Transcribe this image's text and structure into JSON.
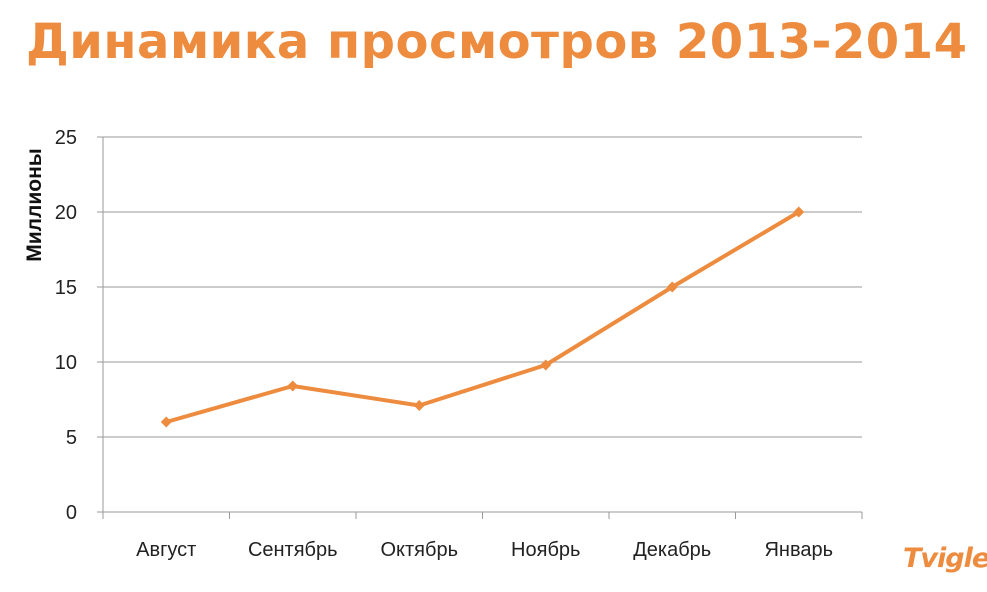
{
  "colors": {
    "accent": "#ED8B3F",
    "grid": "#9a9a9a"
  },
  "title": "Динамика просмотров 2013-2014",
  "logo_text": "Tvigle",
  "chart_data": {
    "type": "line",
    "title": "",
    "xlabel": "",
    "ylabel": "Миллионы",
    "categories": [
      "Август",
      "Сентябрь",
      "Октябрь",
      "Ноябрь",
      "Декабрь",
      "Январь"
    ],
    "series": [
      {
        "values": [
          6.0,
          8.4,
          7.1,
          9.8,
          15.0,
          20.0
        ]
      }
    ],
    "ylim": [
      0,
      25
    ],
    "yticks": [
      "0",
      "5",
      "10",
      "15",
      "20",
      "25"
    ],
    "grid": true,
    "legend": "none"
  }
}
